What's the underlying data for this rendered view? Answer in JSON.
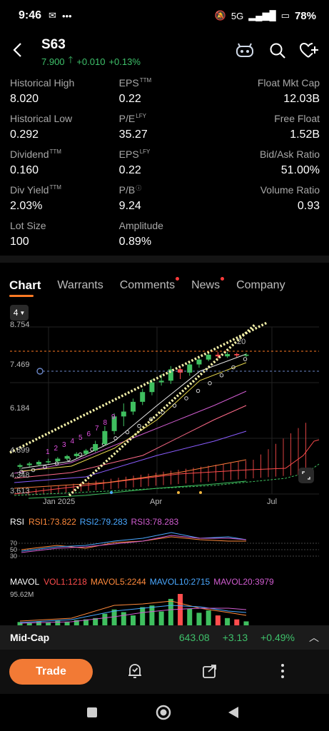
{
  "status": {
    "time": "9:46",
    "network": "5G",
    "battery": "78%"
  },
  "header": {
    "ticker": "S63",
    "price": "7.900",
    "change": "+0.010",
    "change_pct": "+0.13%"
  },
  "stats": [
    [
      {
        "label": "Historical High",
        "sup": "",
        "value": "8.020"
      },
      {
        "label": "EPS",
        "sup": "TTM",
        "value": "0.22"
      },
      {
        "label": "Float Mkt Cap",
        "sup": "",
        "value": "12.03B"
      }
    ],
    [
      {
        "label": "Historical Low",
        "sup": "",
        "value": "0.292"
      },
      {
        "label": "P/E",
        "sup": "LFY",
        "value": "35.27"
      },
      {
        "label": "Free Float",
        "sup": "",
        "value": "1.52B"
      }
    ],
    [
      {
        "label": "Dividend",
        "sup": "TTM",
        "value": "0.160"
      },
      {
        "label": "EPS",
        "sup": "LFY",
        "value": "0.22"
      },
      {
        "label": "Bid/Ask Ratio",
        "sup": "",
        "value": "51.00%"
      }
    ],
    [
      {
        "label": "Div Yield",
        "sup": "TTM",
        "value": "2.03%"
      },
      {
        "label": "P/B",
        "sup": "ⓘ",
        "value": "9.24"
      },
      {
        "label": "Volume Ratio",
        "sup": "",
        "value": "0.93"
      }
    ],
    [
      {
        "label": "Lot Size",
        "sup": "",
        "value": "100"
      },
      {
        "label": "Amplitude",
        "sup": "",
        "value": "0.89%"
      },
      {
        "label": "",
        "sup": "",
        "value": ""
      }
    ]
  ],
  "tabs": [
    {
      "label": "Chart",
      "active": true,
      "dot": false
    },
    {
      "label": "Warrants",
      "active": false,
      "dot": false
    },
    {
      "label": "Comments",
      "active": false,
      "dot": true
    },
    {
      "label": "News",
      "active": false,
      "dot": true
    },
    {
      "label": "Company",
      "active": false,
      "dot": false
    }
  ],
  "chart": {
    "period": "4",
    "y_ticks": [
      "8.754",
      "7.469",
      "6.184",
      "4.899",
      "4.348",
      "3.613"
    ],
    "x_ticks": [
      "Jan 2025",
      "Apr",
      "Jul"
    ],
    "last_label": "20",
    "count_labels": [
      "1",
      "2",
      "3",
      "4",
      "5",
      "6",
      "7",
      "8",
      "9"
    ]
  },
  "chart_data": {
    "type": "candlestick",
    "ylim": [
      3.613,
      8.754
    ],
    "y_ticks": [
      8.754,
      7.469,
      6.184,
      4.899,
      4.348,
      3.613
    ],
    "x_labels": [
      "Jan 2025",
      "Apr",
      "Jul"
    ],
    "candles": [
      {
        "o": 4.45,
        "c": 4.5,
        "h": 4.55,
        "l": 4.38
      },
      {
        "o": 4.5,
        "c": 4.55,
        "h": 4.6,
        "l": 4.45
      },
      {
        "o": 4.52,
        "c": 4.6,
        "h": 4.65,
        "l": 4.48
      },
      {
        "o": 4.6,
        "c": 4.62,
        "h": 4.7,
        "l": 4.55
      },
      {
        "o": 4.62,
        "c": 4.7,
        "h": 4.75,
        "l": 4.58
      },
      {
        "o": 4.7,
        "c": 4.78,
        "h": 4.82,
        "l": 4.65
      },
      {
        "o": 4.78,
        "c": 4.85,
        "h": 4.9,
        "l": 4.72
      },
      {
        "o": 4.85,
        "c": 4.95,
        "h": 5.0,
        "l": 4.8
      },
      {
        "o": 4.95,
        "c": 5.15,
        "h": 5.25,
        "l": 4.9
      },
      {
        "o": 5.15,
        "c": 5.55,
        "h": 5.7,
        "l": 5.1
      },
      {
        "o": 5.55,
        "c": 6.0,
        "h": 6.1,
        "l": 5.45
      },
      {
        "o": 6.0,
        "c": 6.15,
        "h": 6.4,
        "l": 5.7
      },
      {
        "o": 6.15,
        "c": 6.45,
        "h": 6.55,
        "l": 6.05
      },
      {
        "o": 6.45,
        "c": 6.75,
        "h": 6.85,
        "l": 6.35
      },
      {
        "o": 6.75,
        "c": 7.05,
        "h": 7.15,
        "l": 6.65
      },
      {
        "o": 7.05,
        "c": 7.1,
        "h": 7.3,
        "l": 6.95
      },
      {
        "o": 7.1,
        "c": 7.45,
        "h": 7.55,
        "l": 7.0
      },
      {
        "o": 7.45,
        "c": 7.35,
        "h": 7.55,
        "l": 7.15
      },
      {
        "o": 7.35,
        "c": 7.6,
        "h": 7.7,
        "l": 7.25
      },
      {
        "o": 7.6,
        "c": 7.75,
        "h": 7.85,
        "l": 7.5
      },
      {
        "o": 7.75,
        "c": 7.9,
        "h": 8.02,
        "l": 7.7
      },
      {
        "o": 7.9,
        "c": 7.85,
        "h": 7.98,
        "l": 7.78
      },
      {
        "o": 7.85,
        "c": 7.92,
        "h": 7.98,
        "l": 7.8
      },
      {
        "o": 7.92,
        "c": 7.88,
        "h": 7.96,
        "l": 7.82
      },
      {
        "o": 7.88,
        "c": 7.9,
        "h": 7.95,
        "l": 7.83
      }
    ],
    "colors": {
      "up": "#3fbf5f",
      "down": "#ff4d4d",
      "ma1": "#e9e9e9",
      "ma2": "#e8d84c",
      "ma3": "#d05cd0",
      "ma4": "#ff6b8a",
      "ma5": "#8a5cff",
      "ma6": "#ff7b3c",
      "ma7": "#3fbf5f",
      "cloud": "#ff4d4d",
      "trend": "#f3f0a8",
      "accent": "#ff7a24"
    },
    "rsi": {
      "label": "RSI",
      "series": [
        {
          "name": "RSI1",
          "value": "73.822",
          "color": "#ff8a3c"
        },
        {
          "name": "RSI2",
          "value": "79.283",
          "color": "#4aa8ff"
        },
        {
          "name": "RSI3",
          "value": "78.283",
          "color": "#d05cd0"
        }
      ],
      "levels": [
        "70",
        "50",
        "30"
      ]
    },
    "mavol": {
      "label": "MAVOL",
      "series": [
        {
          "name": "VOL1",
          "value": "1218",
          "color": "#ff4d4d"
        },
        {
          "name": "MAVOL5",
          "value": "2244",
          "color": "#ff8a3c"
        },
        {
          "name": "MAVOL10",
          "value": "2715",
          "color": "#4aa8ff"
        },
        {
          "name": "MAVOL20",
          "value": "3979",
          "color": "#d05cd0"
        }
      ],
      "max_label": "95.62M",
      "volumes": [
        10,
        8,
        12,
        9,
        14,
        11,
        16,
        18,
        22,
        35,
        48,
        40,
        30,
        55,
        60,
        42,
        80,
        95,
        50,
        38,
        45,
        30,
        22,
        18,
        12
      ]
    }
  },
  "midcap": {
    "name": "Mid-Cap",
    "value": "643.08",
    "change": "+3.13",
    "change_pct": "+0.49%"
  },
  "bottom": {
    "trade_label": "Trade"
  }
}
